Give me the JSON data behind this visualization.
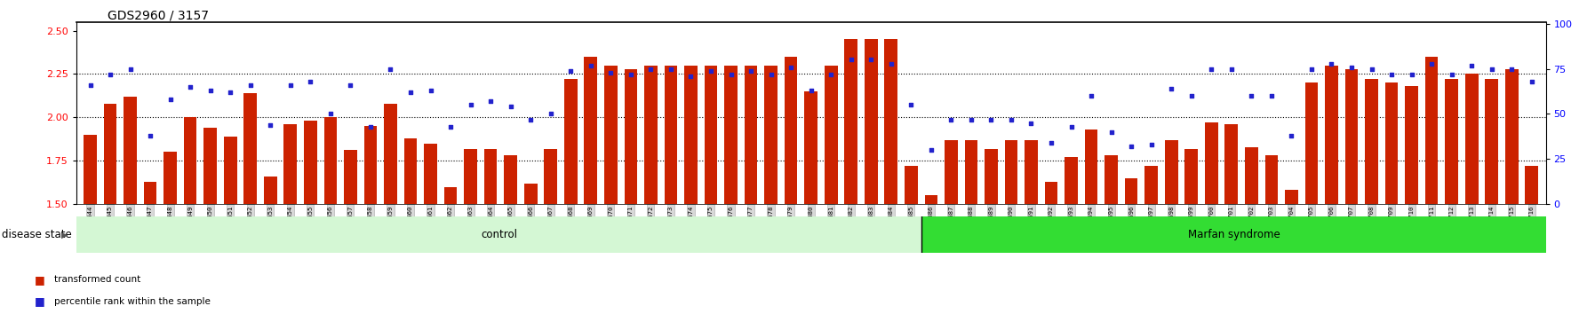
{
  "title": "GDS2960 / 3157",
  "ylim_left": [
    1.5,
    2.55
  ],
  "ylim_right": [
    0,
    101
  ],
  "yticks_left": [
    1.5,
    1.75,
    2.0,
    2.25,
    2.5
  ],
  "yticks_right": [
    0,
    25,
    50,
    75,
    100
  ],
  "bar_color": "#cc2200",
  "dot_color": "#2222cc",
  "control_label": "control",
  "marfan_label": "Marfan syndrome",
  "disease_state_label": "disease state",
  "legend_bar": "transformed count",
  "legend_dot": "percentile rank within the sample",
  "control_bg": "#d4f7d4",
  "marfan_bg": "#33dd33",
  "xtick_bg": "#d8d8d8",
  "categories": [
    "GSM217644",
    "GSM217645",
    "GSM217646",
    "GSM217647",
    "GSM217648",
    "GSM217649",
    "GSM217650",
    "GSM217651",
    "GSM217652",
    "GSM217653",
    "GSM217654",
    "GSM217655",
    "GSM217656",
    "GSM217657",
    "GSM217658",
    "GSM217659",
    "GSM217660",
    "GSM217661",
    "GSM217662",
    "GSM217663",
    "GSM217664",
    "GSM217665",
    "GSM217666",
    "GSM217667",
    "GSM217668",
    "GSM217669",
    "GSM217670",
    "GSM217671",
    "GSM217672",
    "GSM217673",
    "GSM217674",
    "GSM217675",
    "GSM217676",
    "GSM217677",
    "GSM217678",
    "GSM217679",
    "GSM217680",
    "GSM217681",
    "GSM217682",
    "GSM217683",
    "GSM217684",
    "GSM217685",
    "GSM217686",
    "GSM217687",
    "GSM217688",
    "GSM217689",
    "GSM217690",
    "GSM217691",
    "GSM217692",
    "GSM217693",
    "GSM217694",
    "GSM217695",
    "GSM217696",
    "GSM217697",
    "GSM217698",
    "GSM217699",
    "GSM217700",
    "GSM217701",
    "GSM217702",
    "GSM217703",
    "GSM217704",
    "GSM217705",
    "GSM217706",
    "GSM217707",
    "GSM217708",
    "GSM217709",
    "GSM217710",
    "GSM217711",
    "GSM217712",
    "GSM217713",
    "GSM217714",
    "GSM217715",
    "GSM217716"
  ],
  "bar_values": [
    1.9,
    2.08,
    2.12,
    1.63,
    1.8,
    2.0,
    1.94,
    1.89,
    2.14,
    1.66,
    1.96,
    1.98,
    2.0,
    1.81,
    1.95,
    2.08,
    1.88,
    1.85,
    1.6,
    1.82,
    1.82,
    1.78,
    1.62,
    1.82,
    2.22,
    2.35,
    2.3,
    2.28,
    2.3,
    2.3,
    2.3,
    2.3,
    2.3,
    2.3,
    2.3,
    2.35,
    2.15,
    2.3,
    2.45,
    2.45,
    2.45,
    1.72,
    1.55,
    1.87,
    1.87,
    1.82,
    1.87,
    1.87,
    1.63,
    1.77,
    1.93,
    1.78,
    1.65,
    1.72,
    1.87,
    1.82,
    1.97,
    1.96,
    1.83,
    1.78,
    1.58,
    2.2,
    2.3,
    2.28,
    2.22,
    2.2,
    2.18,
    2.35,
    2.22,
    2.25,
    2.22,
    2.28,
    1.72
  ],
  "dot_values_pct": [
    66,
    72,
    75,
    38,
    58,
    65,
    63,
    62,
    66,
    44,
    66,
    68,
    50,
    66,
    43,
    75,
    62,
    63,
    43,
    55,
    57,
    54,
    47,
    50,
    74,
    77,
    73,
    72,
    75,
    75,
    71,
    74,
    72,
    74,
    72,
    76,
    63,
    72,
    80,
    80,
    78,
    55,
    30,
    47,
    47,
    47,
    47,
    45,
    34,
    43,
    60,
    40,
    32,
    33,
    64,
    60,
    75,
    75,
    60,
    60,
    38,
    75,
    78,
    76,
    75,
    72,
    72,
    78,
    72,
    77,
    75,
    75,
    68
  ],
  "n_control": 42,
  "gridline_values": [
    1.75,
    2.0,
    2.25
  ]
}
